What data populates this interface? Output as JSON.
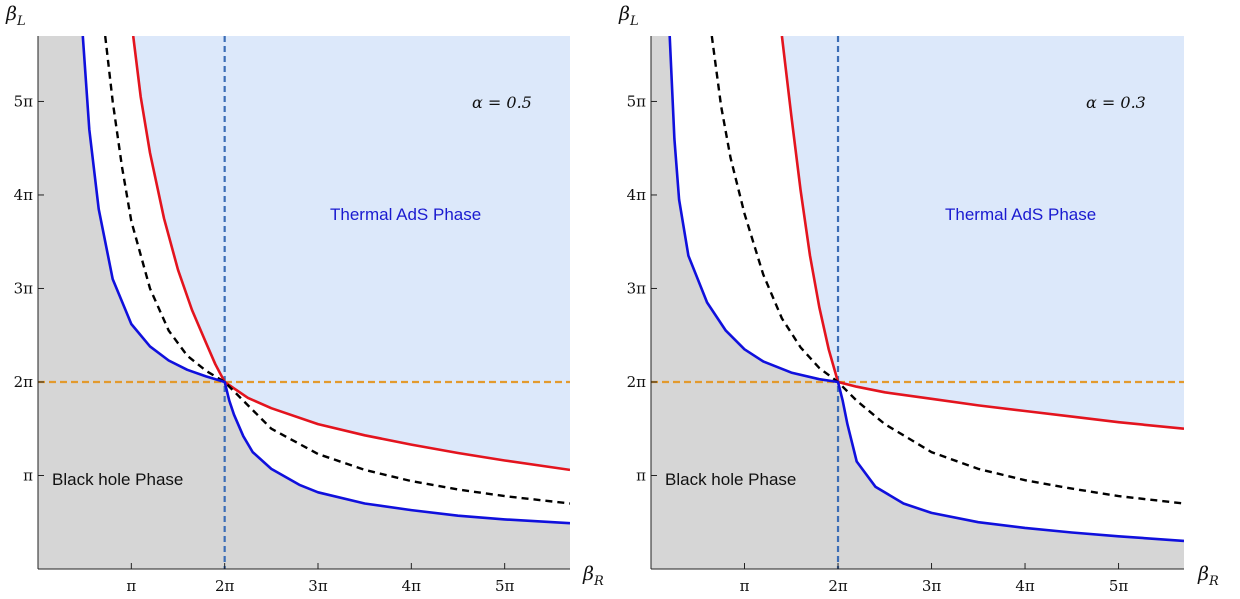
{
  "colors": {
    "thermal_fill": "#dce8fa",
    "blackhole_fill": "#d6d6d6",
    "red_curve": "#e3141e",
    "blue_curve": "#1010dd",
    "dashed_curve": "#000000",
    "vline": "#3b6db6",
    "hline": "#e39a2d",
    "thermal_label": "#1a1ad0",
    "blackhole_label": "#111111"
  },
  "chart_data": [
    {
      "type": "line",
      "title": "",
      "xlabel": "β_R",
      "ylabel": "β_L",
      "x_unit": "π",
      "y_unit": "π",
      "xlim": [
        0,
        5.7
      ],
      "ylim": [
        0,
        5.7
      ],
      "x_ticks": [
        1,
        2,
        3,
        4,
        5
      ],
      "y_ticks": [
        1,
        2,
        3,
        4,
        5
      ],
      "x_tick_labels": [
        "π",
        "2π",
        "3π",
        "4π",
        "5π"
      ],
      "y_tick_labels": [
        "π",
        "2π",
        "3π",
        "4π",
        "5π"
      ],
      "annotation": "α = 0.5",
      "alpha": 0.5,
      "regions": {
        "thermal": "Thermal AdS Phase",
        "black_hole": "Black hole Phase"
      },
      "reference_lines": {
        "vertical_x": 2,
        "horizontal_y": 2
      },
      "series": [
        {
          "key": "red",
          "x": [
            1.02,
            1.1,
            1.2,
            1.35,
            1.5,
            1.65,
            1.8,
            1.9,
            2.0,
            2.25,
            2.5,
            3,
            3.5,
            4,
            4.5,
            5,
            5.7
          ],
          "y": [
            5.7,
            5.05,
            4.45,
            3.75,
            3.2,
            2.77,
            2.42,
            2.19,
            2.0,
            1.83,
            1.72,
            1.55,
            1.43,
            1.33,
            1.24,
            1.16,
            1.06
          ]
        },
        {
          "key": "dashed",
          "x": [
            0.72,
            0.8,
            0.9,
            1,
            1.2,
            1.4,
            1.6,
            1.8,
            2,
            2.5,
            3,
            3.5,
            4,
            4.5,
            5,
            5.7
          ],
          "y": [
            5.7,
            5.0,
            4.3,
            3.72,
            3.0,
            2.55,
            2.28,
            2.12,
            2.0,
            1.5,
            1.23,
            1.06,
            0.94,
            0.85,
            0.78,
            0.7
          ]
        },
        {
          "key": "blue",
          "x": [
            0.48,
            0.55,
            0.65,
            0.8,
            1,
            1.2,
            1.4,
            1.6,
            1.8,
            2,
            2.05,
            2.1,
            2.2,
            2.3,
            2.5,
            2.8,
            3,
            3.5,
            4,
            4.5,
            5,
            5.7
          ],
          "y": [
            5.7,
            4.7,
            3.85,
            3.1,
            2.62,
            2.38,
            2.23,
            2.13,
            2.06,
            2.0,
            1.8,
            1.65,
            1.42,
            1.25,
            1.07,
            0.9,
            0.82,
            0.7,
            0.63,
            0.57,
            0.53,
            0.49
          ]
        }
      ]
    },
    {
      "type": "line",
      "title": "",
      "xlabel": "β_R",
      "ylabel": "β_L",
      "x_unit": "π",
      "y_unit": "π",
      "xlim": [
        0,
        5.7
      ],
      "ylim": [
        0,
        5.7
      ],
      "x_ticks": [
        1,
        2,
        3,
        4,
        5
      ],
      "y_ticks": [
        1,
        2,
        3,
        4,
        5
      ],
      "x_tick_labels": [
        "π",
        "2π",
        "3π",
        "4π",
        "5π"
      ],
      "y_tick_labels": [
        "π",
        "2π",
        "3π",
        "4π",
        "5π"
      ],
      "annotation": "α = 0.3",
      "alpha": 0.3,
      "regions": {
        "thermal": "Thermal AdS Phase",
        "black_hole": "Black hole Phase"
      },
      "reference_lines": {
        "vertical_x": 2,
        "horizontal_y": 2
      },
      "series": [
        {
          "key": "red",
          "x": [
            1.4,
            1.5,
            1.6,
            1.7,
            1.8,
            1.9,
            2.0,
            2.2,
            2.5,
            3,
            3.5,
            4,
            4.5,
            5,
            5.7
          ],
          "y": [
            5.7,
            4.85,
            4.05,
            3.35,
            2.8,
            2.35,
            2.0,
            1.95,
            1.89,
            1.82,
            1.75,
            1.69,
            1.63,
            1.57,
            1.5
          ]
        },
        {
          "key": "dashed",
          "x": [
            0.65,
            0.75,
            0.85,
            1,
            1.2,
            1.4,
            1.6,
            1.8,
            2,
            2.2,
            2.5,
            3,
            3.5,
            4,
            4.5,
            5,
            5.7
          ],
          "y": [
            5.7,
            4.95,
            4.4,
            3.8,
            3.15,
            2.68,
            2.37,
            2.15,
            2.0,
            1.8,
            1.55,
            1.25,
            1.07,
            0.95,
            0.86,
            0.78,
            0.7
          ]
        },
        {
          "key": "blue",
          "x": [
            0.2,
            0.25,
            0.3,
            0.4,
            0.6,
            0.8,
            1,
            1.2,
            1.5,
            1.8,
            2,
            2.05,
            2.1,
            2.2,
            2.4,
            2.7,
            3,
            3.5,
            4,
            4.5,
            5,
            5.7
          ],
          "y": [
            5.7,
            4.6,
            3.95,
            3.35,
            2.85,
            2.55,
            2.35,
            2.22,
            2.1,
            2.03,
            2.0,
            1.8,
            1.55,
            1.15,
            0.88,
            0.7,
            0.6,
            0.5,
            0.44,
            0.39,
            0.35,
            0.3
          ]
        }
      ]
    }
  ]
}
